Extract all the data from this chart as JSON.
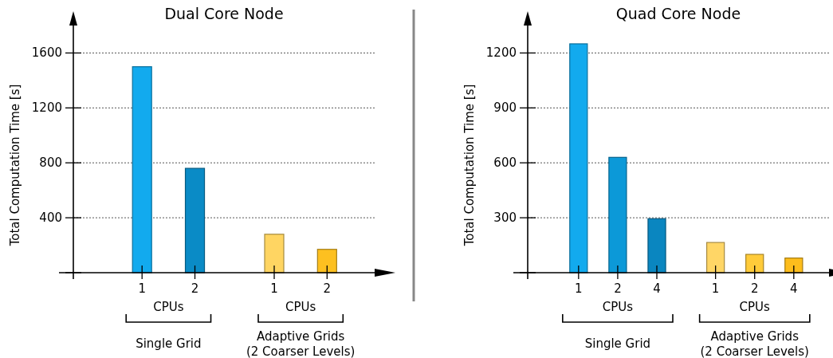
{
  "chart_data": [
    {
      "type": "bar",
      "title": "Dual Core Node",
      "ylabel": "Total Computation Time [s]",
      "xlabel": "CPUs",
      "categories": [
        "1",
        "2",
        "1",
        "2"
      ],
      "series": [
        {
          "colors": [
            "#12aaee",
            "#0a8bc6",
            null,
            null
          ],
          "values": [
            1500,
            760,
            null,
            null
          ]
        },
        {
          "colors": [
            null,
            null,
            "#ffd562",
            "#fdc020"
          ],
          "values": [
            null,
            null,
            280,
            170
          ]
        }
      ],
      "ylim": [
        0,
        1800
      ],
      "yticks": [
        {
          "value": 0,
          "label": null
        },
        400,
        800,
        1200,
        1600
      ],
      "grid": "y",
      "annotations": [
        "Single Grid",
        "Adaptive Grids\n(2 Coarser Levels)"
      ]
    },
    {
      "type": "bar",
      "title": "Quad Core Node",
      "ylabel": "Total Computation Time [s]",
      "xlabel": "CPUs",
      "categories": [
        "1",
        "2",
        "4",
        "1",
        "2",
        "4"
      ],
      "series": [
        {
          "colors": [
            "#12aaee",
            "#0c99d8",
            "#0a86c0",
            null,
            null,
            null
          ],
          "values": [
            1250,
            630,
            295,
            null,
            null,
            null
          ]
        },
        {
          "colors": [
            null,
            null,
            null,
            "#ffd666",
            "#ffcb3a",
            "#fdbd1c"
          ],
          "values": [
            null,
            null,
            null,
            165,
            100,
            80
          ]
        }
      ],
      "ylim": [
        0,
        1350
      ],
      "yticks": [
        {
          "value": 0,
          "label": null
        },
        300,
        600,
        900,
        1200
      ],
      "grid": "y",
      "annotations": [
        "Single Grid",
        "Adaptive Grids\n(2 Coarser Levels)"
      ]
    }
  ]
}
